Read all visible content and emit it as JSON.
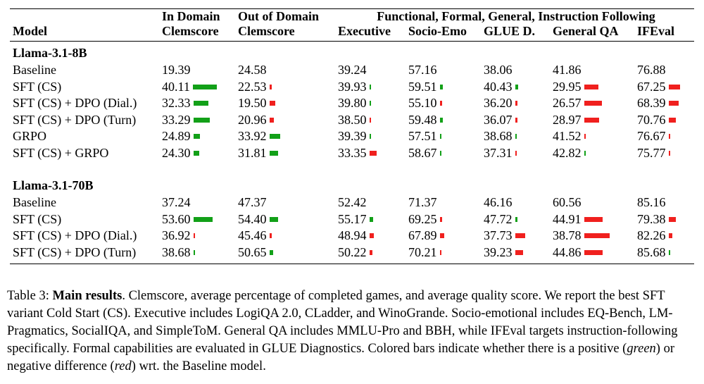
{
  "table": {
    "group_headers": [
      "In Domain",
      "Out of Domain",
      "Functional, Formal, General, Instruction Following"
    ],
    "columns": [
      "Model",
      "Clemscore",
      "Clemscore",
      "Executive",
      "Socio-Emo",
      "GLUE D.",
      "General QA",
      "IFEval"
    ],
    "sections": [
      {
        "name": "Llama-3.1-8B",
        "rows": [
          {
            "model": "Baseline",
            "values": [
              "19.39",
              "24.58",
              "39.24",
              "57.16",
              "38.06",
              "41.86",
              "76.88"
            ],
            "diffs": [
              0,
              0,
              0,
              0,
              0,
              0,
              0
            ]
          },
          {
            "model": "SFT (CS)",
            "values": [
              "40.11",
              "22.53",
              "39.93",
              "59.51",
              "40.43",
              "29.95",
              "67.25"
            ],
            "diffs": [
              20.72,
              -2.05,
              0.69,
              2.35,
              2.37,
              -11.91,
              -9.63
            ]
          },
          {
            "model": "SFT (CS) + DPO (Dial.)",
            "values": [
              "32.33",
              "19.50",
              "39.80",
              "55.10",
              "36.20",
              "26.57",
              "68.39"
            ],
            "diffs": [
              12.94,
              -5.08,
              0.56,
              -2.06,
              -1.86,
              -15.29,
              -8.49
            ]
          },
          {
            "model": "SFT (CS) + DPO (Turn)",
            "values": [
              "33.29",
              "20.96",
              "38.50",
              "59.48",
              "36.07",
              "28.97",
              "70.76"
            ],
            "diffs": [
              13.9,
              -3.62,
              -0.74,
              2.32,
              -1.99,
              -12.89,
              -6.12
            ]
          },
          {
            "model": "GRPO",
            "values": [
              "24.89",
              "33.92",
              "39.39",
              "57.51",
              "38.68",
              "41.52",
              "76.67"
            ],
            "diffs": [
              5.5,
              9.34,
              0.15,
              0.35,
              0.62,
              -0.34,
              -0.21
            ]
          },
          {
            "model": "SFT (CS) + GRPO",
            "values": [
              "24.30",
              "31.81",
              "33.35",
              "58.67",
              "37.31",
              "42.82",
              "75.77"
            ],
            "diffs": [
              4.91,
              7.23,
              -5.89,
              1.51,
              -0.75,
              0.96,
              -1.11
            ]
          }
        ]
      },
      {
        "name": "Llama-3.1-70B",
        "rows": [
          {
            "model": "Baseline",
            "values": [
              "37.24",
              "47.37",
              "52.42",
              "71.37",
              "46.16",
              "60.56",
              "85.16"
            ],
            "diffs": [
              0,
              0,
              0,
              0,
              0,
              0,
              0
            ]
          },
          {
            "model": "SFT (CS)",
            "values": [
              "53.60",
              "54.40",
              "55.17",
              "69.25",
              "47.72",
              "44.91",
              "79.38"
            ],
            "diffs": [
              16.36,
              7.03,
              2.75,
              -2.12,
              1.56,
              -15.65,
              -5.78
            ]
          },
          {
            "model": "SFT (CS) + DPO (Dial.)",
            "values": [
              "36.92",
              "45.46",
              "48.94",
              "67.89",
              "37.73",
              "38.78",
              "82.26"
            ],
            "diffs": [
              -0.32,
              -1.91,
              -3.48,
              -3.48,
              -8.43,
              -21.78,
              -2.9
            ]
          },
          {
            "model": "SFT (CS) + DPO (Turn)",
            "values": [
              "38.68",
              "50.65",
              "50.22",
              "70.21",
              "39.23",
              "44.86",
              "85.68"
            ],
            "diffs": [
              1.44,
              3.28,
              -2.2,
              -1.16,
              -6.93,
              -15.7,
              0.52
            ]
          }
        ]
      }
    ],
    "colors": {
      "positive": "#12a018",
      "negative": "#f0201e"
    }
  },
  "caption": {
    "label": "Table 3:",
    "title": "Main results",
    "part1": ". Clemscore, average percentage of completed games, and average quality score. We report the best SFT variant Cold Start (CS). Executive includes LogiQA 2.0, CLadder, and WinoGrande. Socio-emotional includes EQ-Bench, LM-Pragmatics, SocialIQA, and SimpleToM. General QA includes MMLU-Pro and BBH, while IFEval targets instruction-following specifically. Formal capabilities are evaluated in GLUE Diagnostics. Colored bars indicate whether there is a positive (",
    "green": "green",
    "part2": ") or negative difference (",
    "red": "red",
    "part3": ") wrt. the Baseline model."
  }
}
